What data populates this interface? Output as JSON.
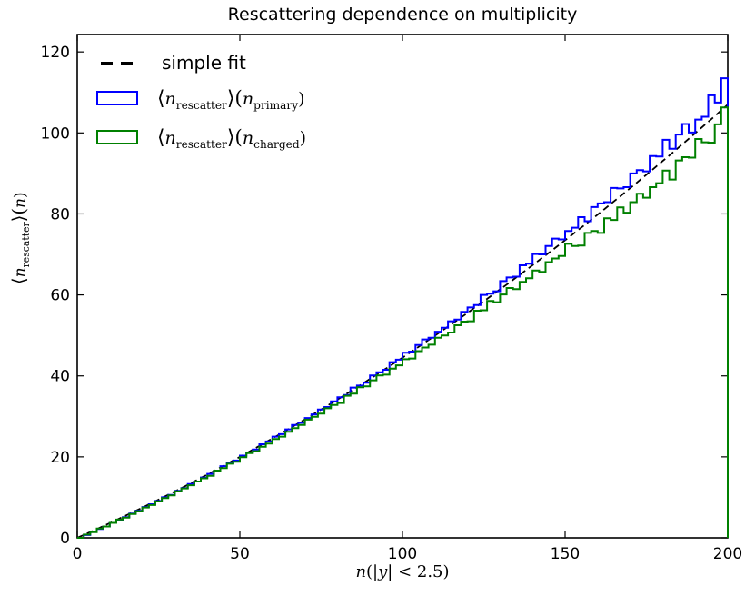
{
  "figure": {
    "title": "Rescattering dependence on multiplicity",
    "background": "#ffffff"
  },
  "axes": {
    "xlabel_parts": {
      "var1": "n",
      "p1": "(|",
      "var2": "y",
      "p2": "| < 2.5)"
    },
    "ylabel_parts": {
      "open": "⟨",
      "var1": "n",
      "sub1": "rescatter",
      "mid": "⟩(",
      "var2": "n",
      "close": ")"
    }
  },
  "legend": {
    "position": "upper left",
    "frame": false,
    "items": [
      {
        "label": "simple fit",
        "marker": "dashed-line",
        "color": "#000000"
      },
      {
        "marker": "open-rect",
        "color": "#0000ff",
        "parts": {
          "open": "⟨",
          "var1": "n",
          "sub1": "rescatter",
          "mid": "⟩(",
          "var2": "n",
          "sub2": "primary",
          "close": ")"
        }
      },
      {
        "marker": "open-rect",
        "color": "#008000",
        "parts": {
          "open": "⟨",
          "var1": "n",
          "sub1": "rescatter",
          "mid": "⟩(",
          "var2": "n",
          "sub2": "charged",
          "close": ")"
        }
      }
    ]
  },
  "chart_data": {
    "type": "line",
    "title": "Rescattering dependence on multiplicity",
    "xlabel": "n(|y| < 2.5)",
    "ylabel": "<n_rescatter>(n)",
    "xlim": [
      0,
      200
    ],
    "ylim": [
      0,
      124.3
    ],
    "xticks": [
      0,
      50,
      100,
      150,
      200
    ],
    "yticks": [
      0,
      20,
      40,
      60,
      80,
      100,
      120
    ],
    "grid": false,
    "legend_position": "upper left",
    "x_start": 0,
    "x_step": 2,
    "series": [
      {
        "name": "simple fit",
        "style": "dashed",
        "color": "#000000",
        "values": [
          0,
          0.71,
          1.43,
          2.16,
          2.9,
          3.64,
          4.39,
          5.15,
          5.91,
          6.68,
          7.46,
          8.25,
          9.04,
          9.84,
          10.65,
          11.46,
          12.28,
          13.11,
          13.95,
          14.79,
          15.64,
          16.5,
          17.36,
          18.23,
          19.11,
          20,
          20.89,
          21.79,
          22.7,
          23.62,
          24.54,
          25.47,
          26.41,
          27.35,
          28.3,
          29.26,
          30.23,
          31.2,
          32.18,
          33.16,
          34.16,
          35.16,
          36.17,
          37.19,
          38.21,
          39.24,
          40.28,
          41.32,
          42.37,
          43.43,
          44.5,
          45.57,
          46.65,
          47.74,
          48.84,
          49.94,
          51.05,
          52.17,
          53.29,
          54.42,
          55.56,
          56.71,
          57.86,
          59.02,
          60.19,
          61.36,
          62.54,
          63.73,
          64.93,
          66.13,
          67.34,
          68.56,
          69.78,
          71.01,
          72.25,
          73.5,
          74.75,
          76.01,
          77.28,
          78.56,
          79.84,
          81.13,
          82.43,
          83.73,
          85.04,
          86.36,
          87.69,
          89.02,
          90.36,
          91.71,
          93.06,
          94.42,
          95.79,
          97.16,
          98.55,
          99.94,
          101.34,
          102.74,
          104.15,
          105.57
        ]
      },
      {
        "name": "<n_rescatter>(n_primary)",
        "style": "step",
        "color": "#0000ff",
        "values": [
          0.0,
          0.7,
          1.5,
          2.2,
          2.8,
          3.7,
          4.4,
          5.1,
          6.0,
          6.7,
          7.6,
          8.3,
          9.1,
          10.0,
          10.6,
          11.6,
          12.3,
          13.3,
          13.9,
          14.9,
          15.8,
          16.5,
          17.7,
          18.4,
          19.1,
          20.3,
          21.1,
          21.8,
          23.1,
          23.8,
          25.0,
          25.6,
          26.8,
          27.9,
          28.4,
          29.6,
          30.5,
          31.7,
          32.3,
          33.7,
          34.7,
          35.3,
          37.1,
          37.6,
          38.3,
          40.1,
          40.9,
          41.5,
          43.4,
          44.0,
          45.7,
          46.0,
          47.6,
          49.0,
          49.4,
          50.9,
          51.9,
          53.5,
          53.9,
          55.8,
          56.9,
          57.5,
          60.0,
          60.3,
          60.9,
          63.4,
          64.3,
          64.5,
          67.3,
          67.7,
          70.1,
          70.0,
          72.1,
          73.9,
          73.7,
          75.8,
          76.6,
          79.2,
          78.2,
          81.7,
          82.6,
          82.9,
          86.4,
          86.3,
          86.6,
          90.0,
          90.8,
          90.5,
          94.3,
          94.2,
          98.3,
          96.1,
          99.6,
          102.2,
          100.1,
          103.3,
          104.0,
          109.3,
          107.5,
          113.5
        ]
      },
      {
        "name": "<n_rescatter>(n_charged)",
        "style": "step",
        "color": "#008000",
        "values": [
          0.0,
          0.8,
          1.4,
          2.3,
          2.8,
          3.7,
          4.5,
          5.0,
          5.9,
          6.6,
          7.5,
          8.1,
          9.0,
          9.8,
          10.5,
          11.5,
          12.2,
          13.0,
          13.9,
          14.7,
          15.3,
          16.6,
          17.2,
          18.3,
          18.8,
          19.9,
          20.9,
          21.4,
          22.5,
          23.3,
          24.4,
          25.0,
          26.2,
          27.1,
          27.9,
          29.2,
          29.9,
          30.7,
          32.0,
          32.8,
          33.3,
          35.1,
          35.6,
          37.2,
          37.4,
          38.9,
          40.1,
          40.3,
          41.8,
          42.6,
          44.1,
          44.3,
          46.1,
          47.0,
          47.7,
          49.4,
          50.0,
          50.7,
          52.5,
          53.4,
          53.5,
          56.1,
          56.2,
          58.5,
          58.2,
          60.1,
          61.7,
          61.4,
          63.2,
          64.1,
          66.0,
          65.7,
          68.1,
          69.0,
          69.6,
          72.6,
          72.1,
          72.2,
          75.3,
          75.8,
          75.3,
          78.9,
          78.5,
          81.6,
          80.3,
          82.9,
          85.0,
          84.0,
          86.6,
          87.6,
          90.7,
          88.5,
          93.2,
          94.0,
          93.9,
          98.5,
          97.7,
          97.6,
          102.1,
          106.3
        ]
      }
    ]
  }
}
